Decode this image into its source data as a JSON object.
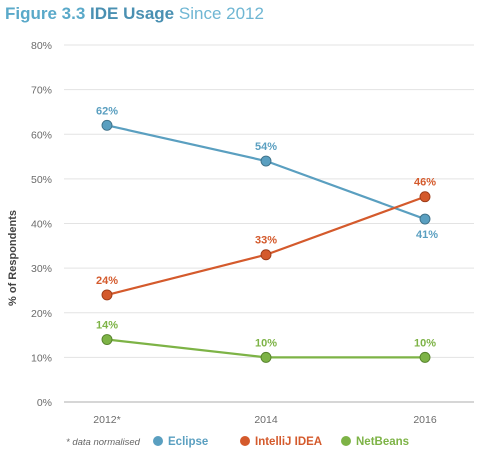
{
  "title": {
    "figure": "Figure 3.3",
    "main": "IDE Usage",
    "sub": "Since 2012"
  },
  "note": "* data normalised",
  "chart_data": {
    "type": "line",
    "title": "Figure 3.3 IDE Usage Since 2012",
    "xlabel": "",
    "ylabel": "% of Respondents",
    "categories": [
      "2012*",
      "2014",
      "2016"
    ],
    "ylim": [
      0,
      80
    ],
    "yticks": [
      0,
      10,
      20,
      30,
      40,
      50,
      60,
      70,
      80
    ],
    "ytick_labels": [
      "0%",
      "10%",
      "20%",
      "30%",
      "40%",
      "50%",
      "60%",
      "70%",
      "80%"
    ],
    "grid": true,
    "legend_position": "bottom",
    "series": [
      {
        "name": "Eclipse",
        "color": "#5a9fc0",
        "values": [
          62,
          54,
          41
        ],
        "labels": [
          "62%",
          "54%",
          "41%"
        ]
      },
      {
        "name": "IntelliJ IDEA",
        "color": "#d45a2c",
        "values": [
          24,
          33,
          46
        ],
        "labels": [
          "24%",
          "33%",
          "46%"
        ]
      },
      {
        "name": "NetBeans",
        "color": "#7db346",
        "values": [
          14,
          10,
          10
        ],
        "labels": [
          "14%",
          "10%",
          "10%"
        ]
      }
    ]
  }
}
